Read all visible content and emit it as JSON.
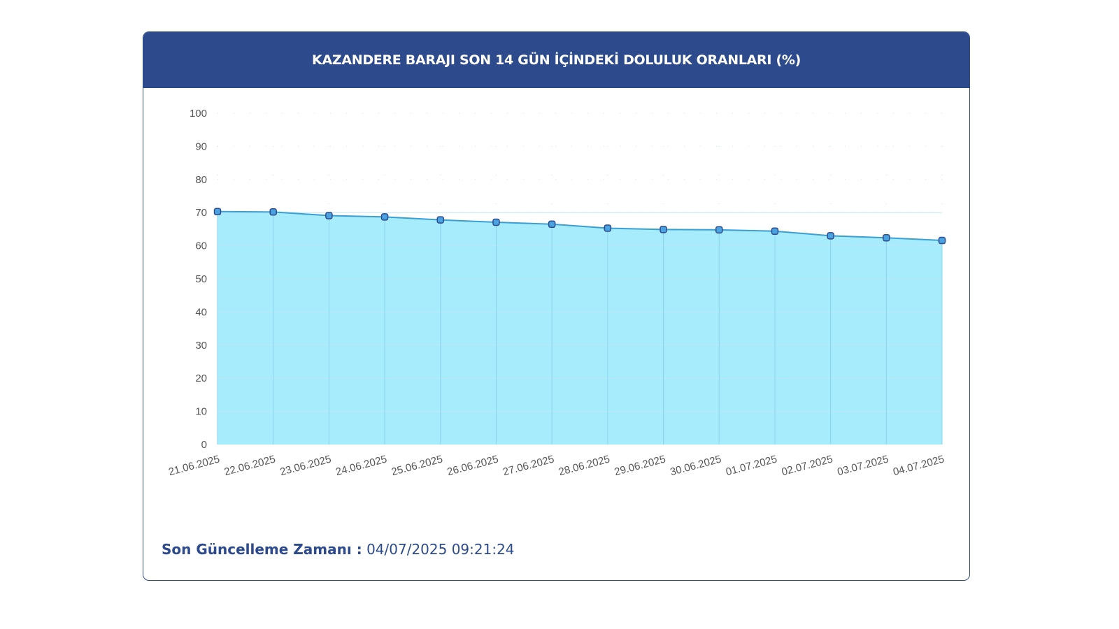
{
  "title": "KAZANDERE BARAJI SON 14 GÜN İÇİNDEKİ DOLULUK ORANLARI (%)",
  "footer": {
    "label": "Son Güncelleme Zamanı :",
    "value": "04/07/2025 09:21:24"
  },
  "colors": {
    "header": "#2c4a8c",
    "area_fill": "#a6ecfc",
    "line": "#3a9fd6",
    "marker_fill": "#4aa3e0",
    "marker_stroke": "#2c4a8c",
    "grid": "#bfe6f5"
  },
  "chart_data": {
    "type": "area",
    "title": "KAZANDERE BARAJI SON 14 GÜN İÇİNDEKİ DOLULUK ORANLARI (%)",
    "xlabel": "",
    "ylabel": "",
    "categories": [
      "21.06.2025",
      "22.06.2025",
      "23.06.2025",
      "24.06.2025",
      "25.06.2025",
      "26.06.2025",
      "27.06.2025",
      "28.06.2025",
      "29.06.2025",
      "30.06.2025",
      "01.07.2025",
      "02.07.2025",
      "03.07.2025",
      "04.07.2025"
    ],
    "values": [
      70.3,
      70.2,
      69.1,
      68.7,
      67.8,
      67.1,
      66.5,
      65.3,
      64.9,
      64.8,
      64.4,
      63.0,
      62.4,
      61.6
    ],
    "yticks": [
      "0",
      "10",
      "20",
      "30",
      "40",
      "50",
      "60",
      "70",
      "80",
      "90",
      "100"
    ],
    "ylim": [
      0,
      100
    ],
    "grid": true,
    "legend": "none"
  }
}
